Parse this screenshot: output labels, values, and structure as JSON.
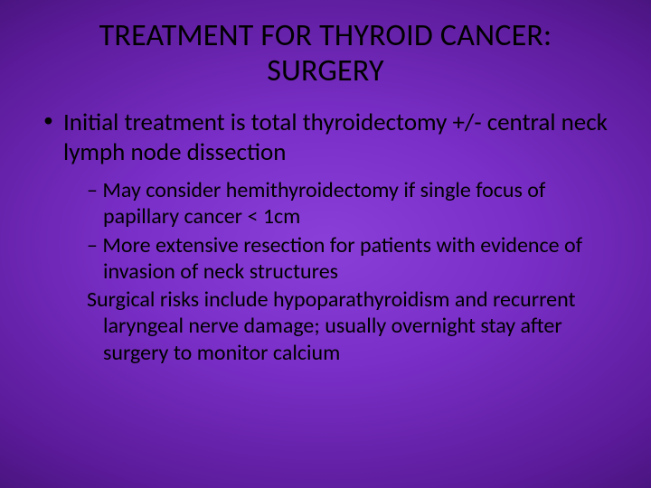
{
  "slide": {
    "title": "TREATMENT FOR THYROID CANCER: SURGERY",
    "bullet1": "Initial treatment is total thyroidectomy +/- central neck lymph node dissection",
    "sub1": "May consider hemithyroidectomy if single focus of papillary cancer < 1cm",
    "sub2": "More extensive resection for patients with evidence of invasion of neck structures",
    "sub3": "Surgical risks include hypoparathyroidism and recurrent laryngeal nerve damage; usually overnight stay after surgery to monitor calcium",
    "colors": {
      "text": "#000000",
      "background_center": "#8a3fd8",
      "background_edge": "#0a0020"
    },
    "typography": {
      "title_fontsize": 34,
      "body_fontsize": 27,
      "sub_fontsize": 24,
      "font_family": "Calibri"
    }
  }
}
